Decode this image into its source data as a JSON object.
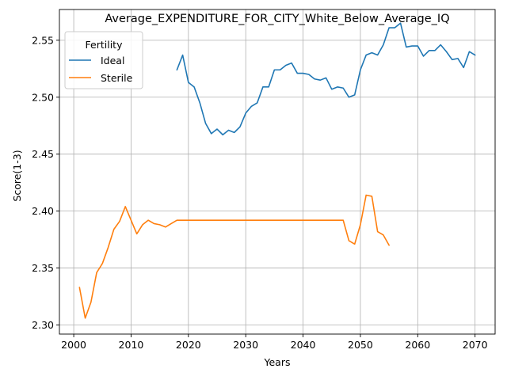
{
  "chart_data": {
    "type": "line",
    "title": "Average_EXPENDITURE_FOR_CITY_White_Below_Average_IQ",
    "xlabel": "Years",
    "ylabel": "Score(1-3)",
    "xlim": [
      1997.5,
      2073.5
    ],
    "ylim": [
      2.292,
      2.577
    ],
    "xticks": [
      2000,
      2010,
      2020,
      2030,
      2040,
      2050,
      2060,
      2070
    ],
    "yticks": [
      2.3,
      2.35,
      2.4,
      2.45,
      2.5,
      2.55
    ],
    "ytick_labels": [
      "2.30",
      "2.35",
      "2.40",
      "2.45",
      "2.50",
      "2.55"
    ],
    "grid": true,
    "legend": {
      "title": "Fertility",
      "position": "upper-left"
    },
    "series": [
      {
        "name": "Ideal",
        "color": "#1f77b4",
        "x": [
          2018,
          2019,
          2020,
          2021,
          2022,
          2023,
          2024,
          2025,
          2026,
          2027,
          2028,
          2029,
          2030,
          2031,
          2032,
          2033,
          2034,
          2035,
          2036,
          2037,
          2038,
          2039,
          2040,
          2041,
          2042,
          2043,
          2044,
          2045,
          2046,
          2047,
          2048,
          2049,
          2050,
          2051,
          2052,
          2053,
          2054,
          2055,
          2056,
          2057,
          2058,
          2059,
          2060,
          2061,
          2062,
          2063,
          2064,
          2065,
          2066,
          2067,
          2068,
          2069,
          2070
        ],
        "y": [
          2.524,
          2.537,
          2.513,
          2.509,
          2.495,
          2.477,
          2.468,
          2.472,
          2.467,
          2.471,
          2.469,
          2.474,
          2.486,
          2.492,
          2.495,
          2.509,
          2.509,
          2.524,
          2.524,
          2.528,
          2.53,
          2.521,
          2.521,
          2.52,
          2.516,
          2.515,
          2.517,
          2.507,
          2.509,
          2.508,
          2.5,
          2.502,
          2.524,
          2.537,
          2.539,
          2.537,
          2.546,
          2.561,
          2.561,
          2.565,
          2.544,
          2.545,
          2.545,
          2.536,
          2.541,
          2.541,
          2.546,
          2.54,
          2.533,
          2.534,
          2.526,
          2.54,
          2.537
        ]
      },
      {
        "name": "Sterile",
        "color": "#ff7f0e",
        "x": [
          2001,
          2002,
          2003,
          2004,
          2005,
          2006,
          2007,
          2008,
          2009,
          2010,
          2011,
          2012,
          2013,
          2014,
          2015,
          2016,
          2017,
          2018,
          2019,
          2020,
          2021,
          2022,
          2023,
          2024,
          2025,
          2026,
          2027,
          2028,
          2029,
          2030,
          2031,
          2032,
          2033,
          2034,
          2035,
          2036,
          2037,
          2038,
          2039,
          2040,
          2041,
          2042,
          2043,
          2044,
          2045,
          2046,
          2047,
          2048,
          2049,
          2050,
          2051,
          2052,
          2053,
          2054,
          2055
        ],
        "y": [
          2.333,
          2.306,
          2.32,
          2.346,
          2.354,
          2.368,
          2.384,
          2.391,
          2.404,
          2.392,
          2.38,
          2.388,
          2.392,
          2.389,
          2.388,
          2.386,
          2.389,
          2.392,
          2.392,
          2.392,
          2.392,
          2.392,
          2.392,
          2.392,
          2.392,
          2.392,
          2.392,
          2.392,
          2.392,
          2.392,
          2.392,
          2.392,
          2.392,
          2.392,
          2.392,
          2.392,
          2.392,
          2.392,
          2.392,
          2.392,
          2.392,
          2.392,
          2.392,
          2.392,
          2.392,
          2.392,
          2.392,
          2.374,
          2.371,
          2.388,
          2.414,
          2.413,
          2.382,
          2.379,
          2.37
        ]
      }
    ]
  }
}
